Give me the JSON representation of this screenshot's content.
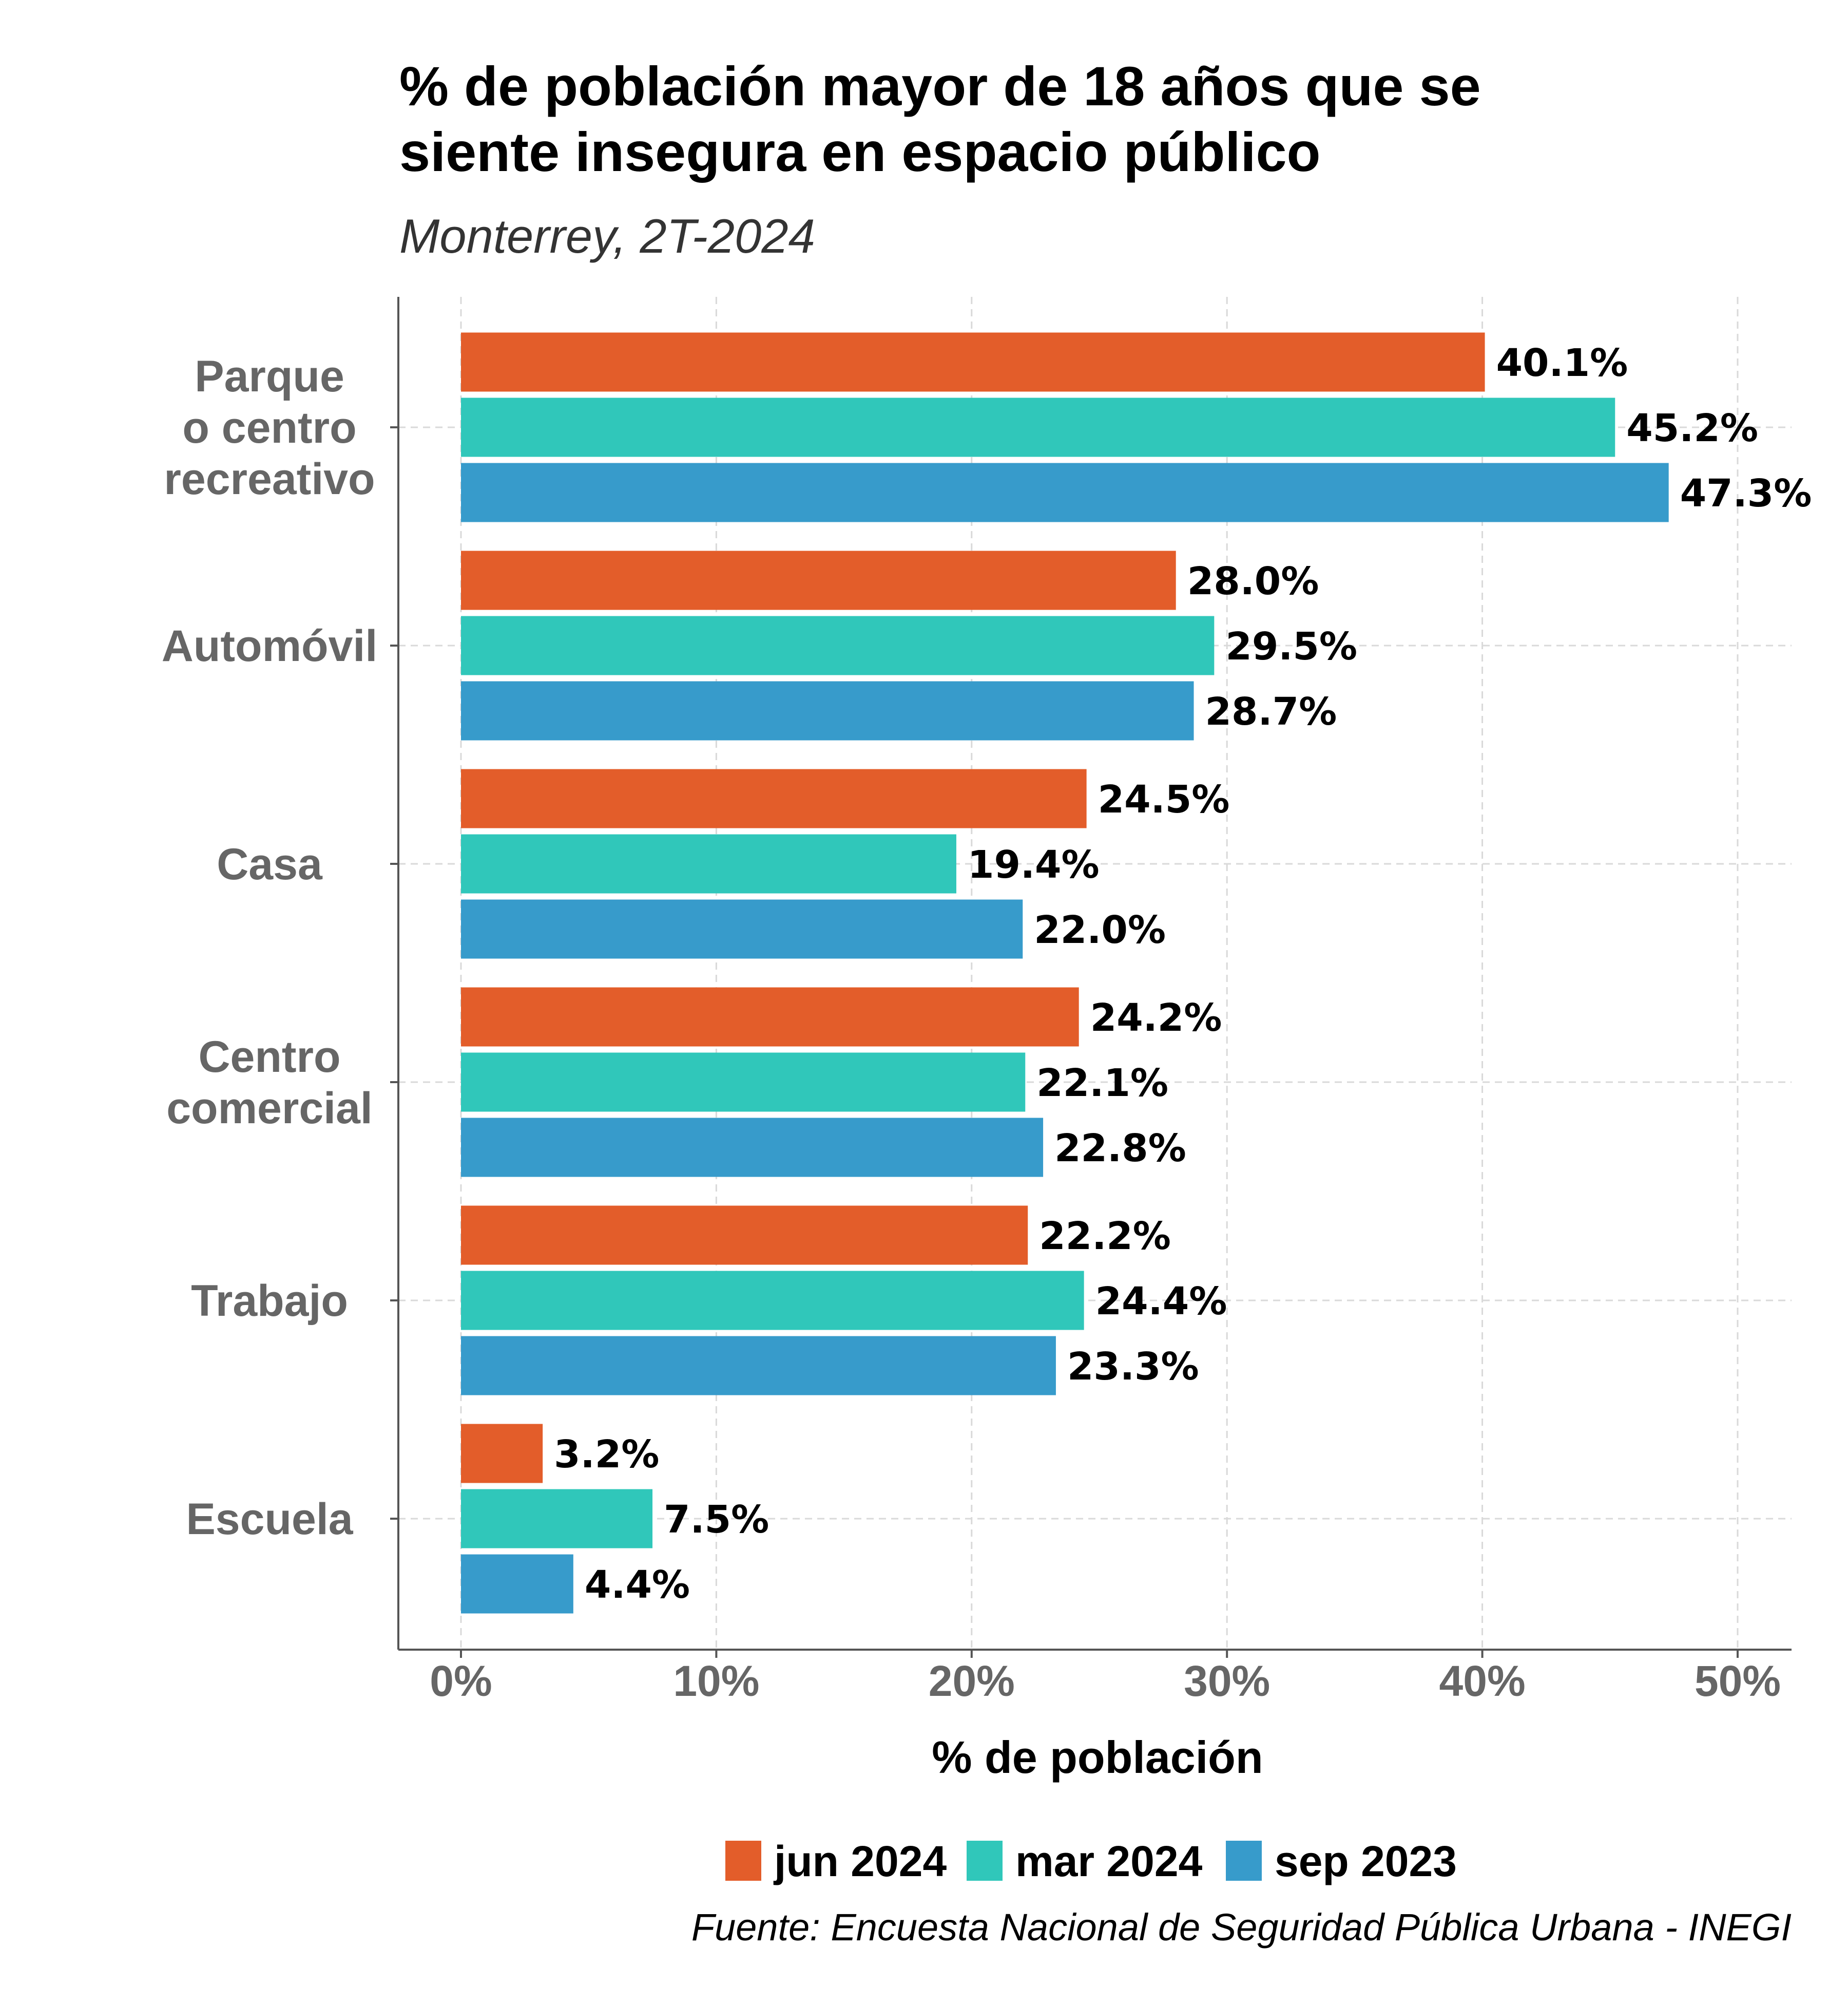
{
  "chart_data": {
    "type": "bar",
    "orientation": "horizontal",
    "title_lines": [
      "% de población mayor de 18 años que se",
      "siente insegura en espacio público"
    ],
    "subtitle": "Monterrey, 2T-2024",
    "categories": [
      [
        "Parque",
        "o centro",
        "recreativo"
      ],
      [
        "Automóvil"
      ],
      [
        "Casa"
      ],
      [
        "Centro",
        "comercial"
      ],
      [
        "Trabajo"
      ],
      [
        "Escuela"
      ]
    ],
    "series": [
      {
        "name": "jun 2024",
        "color": "#E35D2A",
        "values": [
          40.1,
          28.0,
          24.5,
          24.2,
          22.2,
          3.2
        ],
        "labels": [
          "40.1%",
          "28.0%",
          "24.5%",
          "24.2%",
          "22.2%",
          "3.2%"
        ]
      },
      {
        "name": "mar 2024",
        "color": "#30C7BA",
        "values": [
          45.2,
          29.5,
          19.4,
          22.1,
          24.4,
          7.5
        ],
        "labels": [
          "45.2%",
          "29.5%",
          "19.4%",
          "22.1%",
          "24.4%",
          "7.5%"
        ]
      },
      {
        "name": "sep 2023",
        "color": "#379BCB",
        "values": [
          47.3,
          28.7,
          22.0,
          22.8,
          23.3,
          4.4
        ],
        "labels": [
          "47.3%",
          "28.7%",
          "22.0%",
          "22.8%",
          "23.3%",
          "4.4%"
        ]
      }
    ],
    "xlabel": "% de población",
    "xlim": [
      0,
      50
    ],
    "xticks": [
      0,
      10,
      20,
      30,
      40,
      50
    ],
    "xtick_labels": [
      "0%",
      "10%",
      "20%",
      "30%",
      "40%",
      "50%"
    ],
    "grid": true,
    "legend_position": "bottom",
    "source": "Fuente: Encuesta Nacional de Seguridad Pública Urbana - INEGI"
  }
}
